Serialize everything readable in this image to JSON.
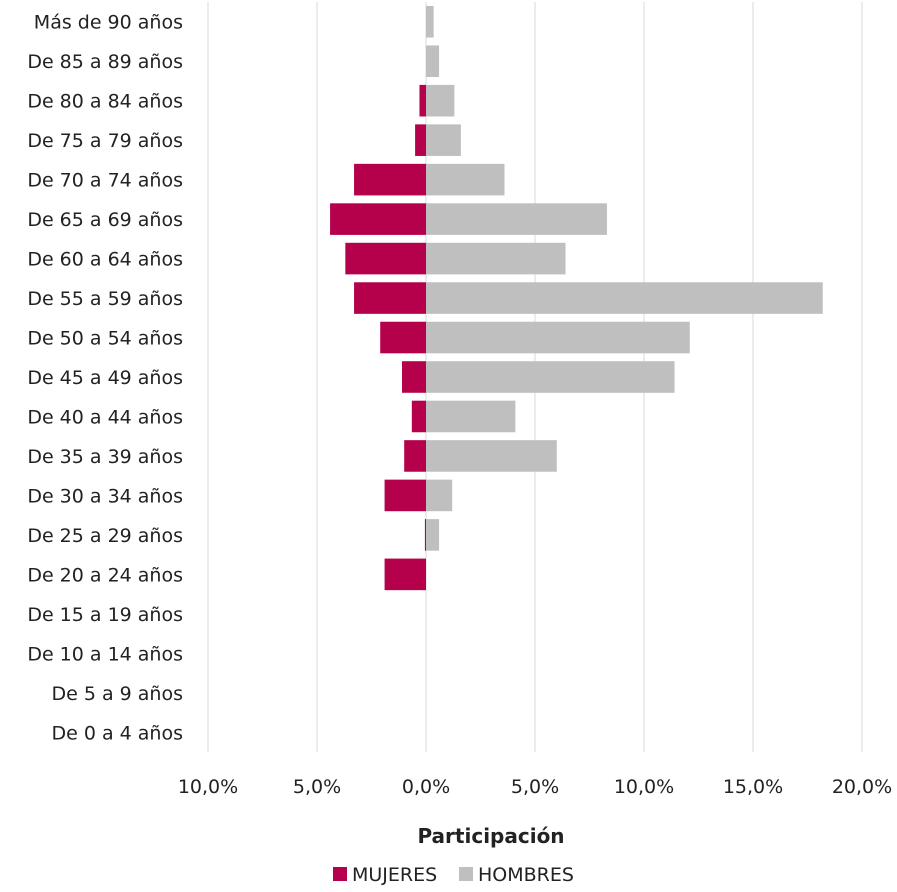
{
  "chart_data": {
    "type": "bar",
    "orientation": "horizontal",
    "layout": "population-pyramid",
    "categories": [
      "Más de 90 años",
      "De 85 a 89 años",
      "De 80 a 84 años",
      "De 75 a 79 años",
      "De 70 a 74 años",
      "De 65 a 69 años",
      "De 60 a 64 años",
      "De 55 a 59 años",
      "De 50 a 54 años",
      "De 45 a 49 años",
      "De 40 a 44 años",
      "De 35 a 39 años",
      "De 30 a 34 años",
      "De 25 a 29 años",
      "De 20 a 24 años",
      "De 15 a 19 años",
      "De 10 a 14 años",
      "De 5 a 9 años",
      "De 0 a 4 años"
    ],
    "series": [
      {
        "name": "MUJERES",
        "color": "#b5004b",
        "values": [
          0,
          0,
          0.3,
          0.5,
          3.3,
          4.4,
          3.7,
          3.3,
          2.1,
          1.1,
          0.65,
          1.0,
          1.9,
          0.05,
          1.9,
          0,
          0,
          0,
          0
        ]
      },
      {
        "name": "HOMBRES",
        "color": "#bfbfbf",
        "values": [
          0.35,
          0.6,
          1.3,
          1.6,
          3.6,
          8.3,
          6.4,
          18.2,
          12.1,
          11.4,
          4.1,
          6.0,
          1.2,
          0.6,
          0,
          0,
          0,
          0,
          0
        ]
      }
    ],
    "xlim": [
      -10,
      20
    ],
    "xticks": [
      -10,
      -5,
      0,
      5,
      10,
      15,
      20
    ],
    "xtick_labels": [
      "10,0%",
      "5,0%",
      "0,0%",
      "5,0%",
      "10,0%",
      "15,0%",
      "20,0%"
    ],
    "xlabel": "Participación",
    "title": "",
    "grid": "vertical",
    "legend_position": "bottom"
  }
}
